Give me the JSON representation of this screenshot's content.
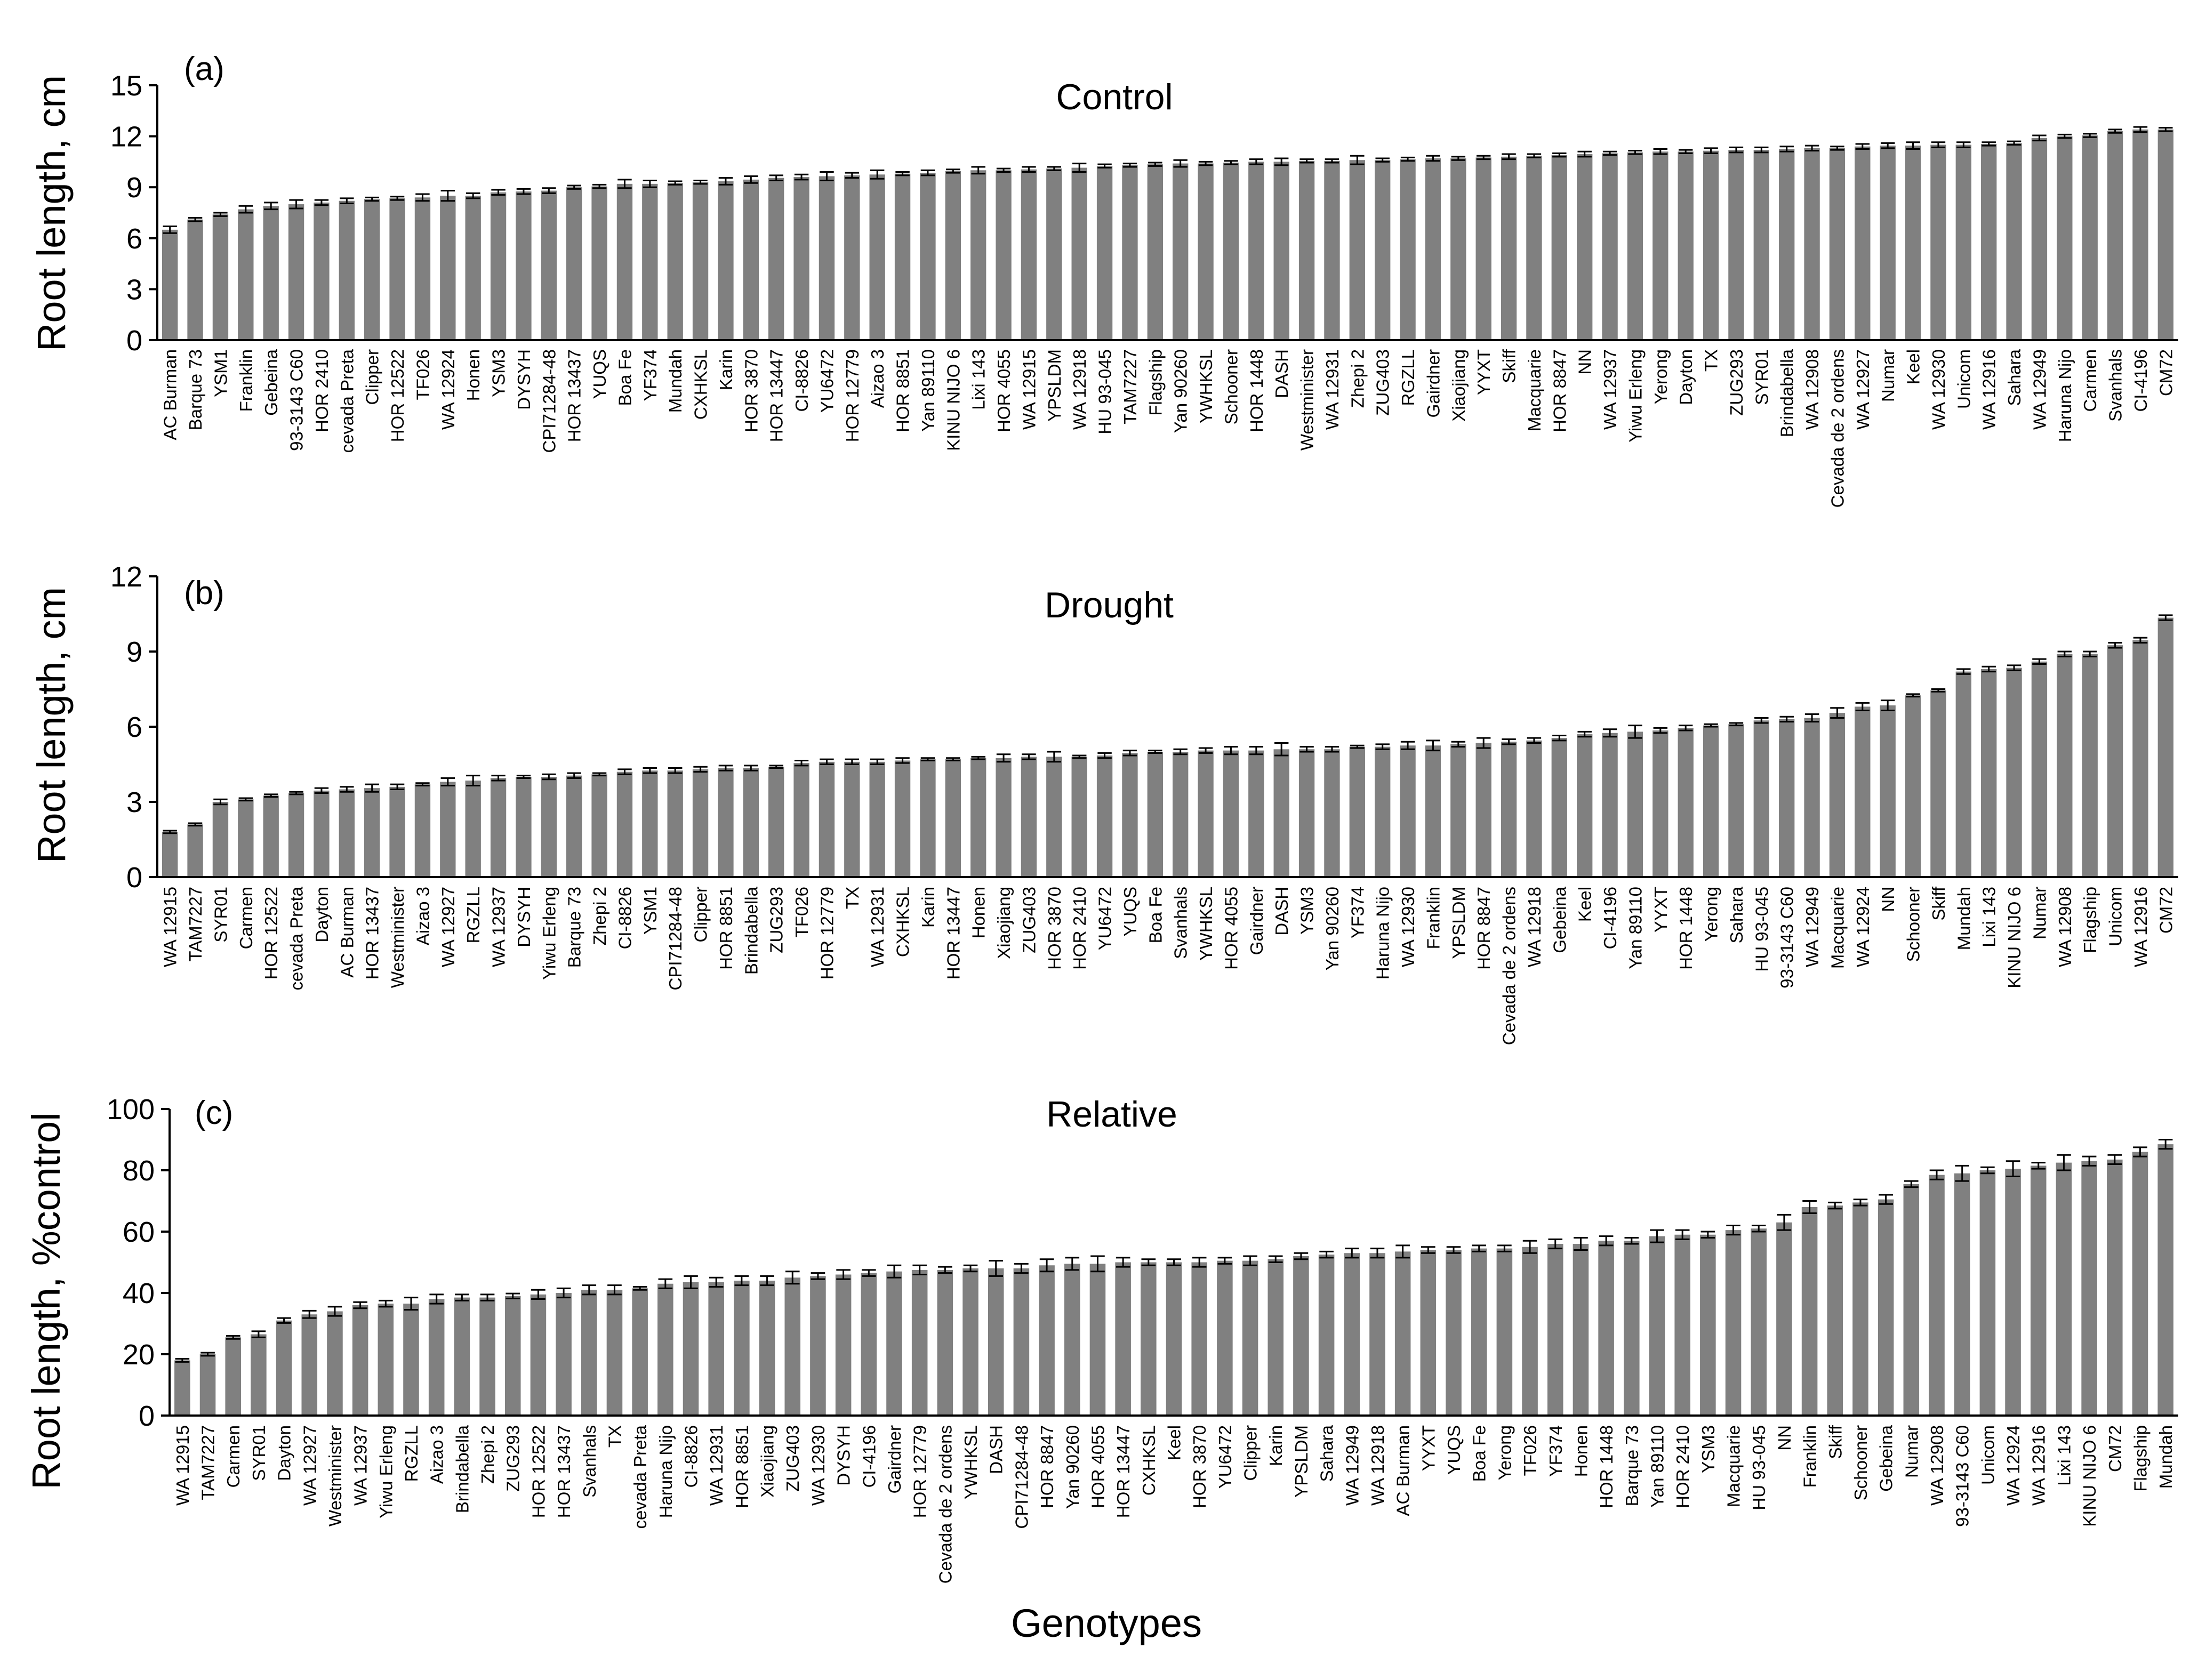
{
  "colors": {
    "bar": "#808080",
    "axis": "#000000",
    "errorbar": "#000000",
    "background": "#ffffff"
  },
  "xlabel": "Genotypes",
  "chart_data": [
    {
      "type": "bar",
      "panel": "(a)",
      "title": "Control",
      "ylabel": "Root length, cm",
      "xlabel": "",
      "ylim": [
        0,
        15
      ],
      "yticks": [
        0,
        3,
        6,
        9,
        12,
        15
      ],
      "categories": [
        "AC Burman",
        "Barque 73",
        "YSM1",
        "Franklin",
        "Gebeina",
        "93-3143 C60",
        "HOR 2410",
        "cevada Preta",
        "Clipper",
        "HOR 12522",
        "TF026",
        "WA 12924",
        "Honen",
        "YSM3",
        "DYSYH",
        "CPI71284-48",
        "HOR 13437",
        "YUQS",
        "Boa Fe",
        "YF374",
        "Mundah",
        "CXHKSL",
        "Karin",
        "HOR 3870",
        "HOR 13447",
        "CI-8826",
        "YU6472",
        "HOR 12779",
        "Aizao 3",
        "HOR 8851",
        "Yan 89110",
        "KINU NIJO 6",
        "Lixi 143",
        "HOR 4055",
        "WA 12915",
        "YPSLDM",
        "WA 12918",
        "HU 93-045",
        "TAM7227",
        "Flagship",
        "Yan 90260",
        "YWHKSL",
        "Schooner",
        "HOR 1448",
        "DASH",
        "Westminister",
        "WA 12931",
        "Zhepi 2",
        "ZUG403",
        "RGZLL",
        "Gairdner",
        "Xiaojiang",
        "YYXT",
        "Skiff",
        "Macquarie",
        "HOR 8847",
        "NN",
        "WA 12937",
        "Yiwu Erleng",
        "Yerong",
        "Dayton",
        "TX",
        "ZUG293",
        "SYR01",
        "Brindabella",
        "WA 12908",
        "Cevada de 2 ordens",
        "WA 12927",
        "Numar",
        "Keel",
        "WA 12930",
        "Unicom",
        "WA 12916",
        "Sahara",
        "WA 12949",
        "Haruna Nijo",
        "Carmen",
        "Svanhals",
        "CI-4196",
        "CM72"
      ],
      "values": [
        6.5,
        7.1,
        7.4,
        7.7,
        7.9,
        8.0,
        8.1,
        8.2,
        8.3,
        8.35,
        8.4,
        8.5,
        8.5,
        8.7,
        8.75,
        8.8,
        9.0,
        9.05,
        9.2,
        9.2,
        9.25,
        9.3,
        9.35,
        9.45,
        9.55,
        9.6,
        9.65,
        9.7,
        9.75,
        9.8,
        9.85,
        9.95,
        10.0,
        10.0,
        10.05,
        10.1,
        10.15,
        10.25,
        10.3,
        10.35,
        10.4,
        10.4,
        10.45,
        10.5,
        10.5,
        10.55,
        10.55,
        10.6,
        10.6,
        10.65,
        10.7,
        10.7,
        10.75,
        10.8,
        10.85,
        10.9,
        10.95,
        11.0,
        11.05,
        11.1,
        11.1,
        11.15,
        11.2,
        11.2,
        11.25,
        11.3,
        11.3,
        11.4,
        11.45,
        11.45,
        11.5,
        11.5,
        11.55,
        11.6,
        11.9,
        12.0,
        12.05,
        12.3,
        12.4,
        12.4
      ],
      "errors": [
        0.2,
        0.1,
        0.1,
        0.2,
        0.2,
        0.25,
        0.15,
        0.15,
        0.1,
        0.1,
        0.2,
        0.3,
        0.15,
        0.15,
        0.15,
        0.15,
        0.1,
        0.1,
        0.25,
        0.2,
        0.1,
        0.1,
        0.2,
        0.2,
        0.15,
        0.15,
        0.25,
        0.15,
        0.25,
        0.1,
        0.15,
        0.1,
        0.2,
        0.1,
        0.15,
        0.1,
        0.25,
        0.1,
        0.1,
        0.1,
        0.2,
        0.1,
        0.1,
        0.15,
        0.2,
        0.1,
        0.1,
        0.25,
        0.1,
        0.1,
        0.15,
        0.1,
        0.1,
        0.15,
        0.1,
        0.1,
        0.15,
        0.1,
        0.1,
        0.15,
        0.1,
        0.15,
        0.15,
        0.15,
        0.15,
        0.15,
        0.1,
        0.15,
        0.15,
        0.2,
        0.15,
        0.15,
        0.1,
        0.1,
        0.15,
        0.1,
        0.1,
        0.1,
        0.15,
        0.1
      ]
    },
    {
      "type": "bar",
      "panel": "(b)",
      "title": "Drought",
      "ylabel": "Root length, cm",
      "xlabel": "",
      "ylim": [
        0,
        12
      ],
      "yticks": [
        0,
        3,
        6,
        9,
        12
      ],
      "categories": [
        "WA 12915",
        "TAM7227",
        "SYR01",
        "Carmen",
        "HOR 12522",
        "cevada Preta",
        "Dayton",
        "AC Burman",
        "HOR 13437",
        "Westminister",
        "Aizao 3",
        "WA 12927",
        "RGZLL",
        "WA 12937",
        "DYSYH",
        "Yiwu Erleng",
        "Barque 73",
        "Zhepi 2",
        "CI-8826",
        "YSM1",
        "CPI71284-48",
        "Clipper",
        "HOR 8851",
        "Brindabella",
        "ZUG293",
        "TF026",
        "HOR 12779",
        "TX",
        "WA 12931",
        "CXHKSL",
        "Karin",
        "HOR 13447",
        "Honen",
        "Xiaojiang",
        "ZUG403",
        "HOR 3870",
        "HOR 2410",
        "YU6472",
        "YUQS",
        "Boa Fe",
        "Svanhals",
        "YWHKSL",
        "HOR 4055",
        "Gairdner",
        "DASH",
        "YSM3",
        "Yan 90260",
        "YF374",
        "Haruna Nijo",
        "WA 12930",
        "Franklin",
        "YPSLDM",
        "HOR 8847",
        "Cevada de 2 ordens",
        "WA 12918",
        "Gebeina",
        "Keel",
        "CI-4196",
        "Yan 89110",
        "YYXT",
        "HOR 1448",
        "Yerong",
        "Sahara",
        "HU 93-045",
        "93-3143 C60",
        "WA 12949",
        "Macquarie",
        "WA 12924",
        "NN",
        "Schooner",
        "Skiff",
        "Mundah",
        "Lixi 143",
        "KINU NIJO 6",
        "Numar",
        "WA 12908",
        "Flagship",
        "Unicom",
        "WA 12916",
        "CM72"
      ],
      "values": [
        1.8,
        2.1,
        3.0,
        3.1,
        3.25,
        3.35,
        3.45,
        3.5,
        3.55,
        3.6,
        3.7,
        3.8,
        3.85,
        3.95,
        4.0,
        4.0,
        4.05,
        4.1,
        4.2,
        4.25,
        4.25,
        4.3,
        4.35,
        4.35,
        4.4,
        4.55,
        4.6,
        4.6,
        4.6,
        4.65,
        4.7,
        4.7,
        4.75,
        4.75,
        4.8,
        4.8,
        4.8,
        4.85,
        4.95,
        5.0,
        5.0,
        5.05,
        5.05,
        5.05,
        5.1,
        5.1,
        5.1,
        5.2,
        5.2,
        5.25,
        5.25,
        5.3,
        5.35,
        5.4,
        5.45,
        5.55,
        5.7,
        5.75,
        5.8,
        5.85,
        5.95,
        6.05,
        6.1,
        6.25,
        6.3,
        6.35,
        6.55,
        6.8,
        6.85,
        7.25,
        7.45,
        8.2,
        8.3,
        8.35,
        8.6,
        8.9,
        8.9,
        9.25,
        9.45,
        10.35
      ],
      "errors": [
        0.05,
        0.05,
        0.1,
        0.05,
        0.05,
        0.05,
        0.1,
        0.1,
        0.15,
        0.1,
        0.05,
        0.15,
        0.2,
        0.1,
        0.05,
        0.1,
        0.1,
        0.05,
        0.1,
        0.1,
        0.1,
        0.1,
        0.1,
        0.1,
        0.05,
        0.1,
        0.1,
        0.1,
        0.1,
        0.1,
        0.05,
        0.05,
        0.05,
        0.15,
        0.1,
        0.2,
        0.05,
        0.1,
        0.1,
        0.05,
        0.1,
        0.1,
        0.15,
        0.15,
        0.25,
        0.1,
        0.1,
        0.05,
        0.1,
        0.15,
        0.2,
        0.1,
        0.2,
        0.1,
        0.1,
        0.1,
        0.1,
        0.15,
        0.25,
        0.1,
        0.1,
        0.05,
        0.05,
        0.1,
        0.1,
        0.15,
        0.2,
        0.15,
        0.2,
        0.05,
        0.05,
        0.1,
        0.1,
        0.1,
        0.1,
        0.1,
        0.1,
        0.1,
        0.1,
        0.1
      ]
    },
    {
      "type": "bar",
      "panel": "(c)",
      "title": "Relative",
      "ylabel": "Root length, %control",
      "xlabel": "Genotypes",
      "ylim": [
        0,
        100
      ],
      "yticks": [
        0,
        20,
        40,
        60,
        80,
        100
      ],
      "categories": [
        "WA 12915",
        "TAM7227",
        "Carmen",
        "SYR01",
        "Dayton",
        "WA 12927",
        "Westminister",
        "WA 12937",
        "Yiwu Erleng",
        "RGZLL",
        "Aizao 3",
        "Brindabella",
        "Zhepi 2",
        "ZUG293",
        "HOR 12522",
        "HOR 13437",
        "Svanhals",
        "TX",
        "cevada Preta",
        "Haruna Nijo",
        "CI-8826",
        "WA 12931",
        "HOR 8851",
        "Xiaojiang",
        "ZUG403",
        "WA 12930",
        "DYSYH",
        "CI-4196",
        "Gairdner",
        "HOR 12779",
        "Cevada de 2 ordens",
        "YWHKSL",
        "DASH",
        "CPI71284-48",
        "HOR 8847",
        "Yan 90260",
        "HOR 4055",
        "HOR 13447",
        "CXHKSL",
        "Keel",
        "HOR 3870",
        "YU6472",
        "Clipper",
        "Karin",
        "YPSLDM",
        "Sahara",
        "WA 12949",
        "WA 12918",
        "AC Burman",
        "YYXT",
        "YUQS",
        "Boa Fe",
        "Yerong",
        "TF026",
        "YF374",
        "Honen",
        "HOR 1448",
        "Barque 73",
        "Yan 89110",
        "HOR 2410",
        "YSM3",
        "Macquarie",
        "HU 93-045",
        "NN",
        "Franklin",
        "Skiff",
        "Schooner",
        "Gebeina",
        "Numar",
        "WA 12908",
        "93-3143 C60",
        "Unicom",
        "WA 12924",
        "WA 12916",
        "Lixi 143",
        "KINU NIJO 6",
        "CM72",
        "Flagship",
        "Mundah"
      ],
      "values": [
        18,
        20,
        25.5,
        26.5,
        31,
        33,
        34,
        36,
        36.5,
        36.5,
        38,
        38.5,
        38.5,
        39,
        39.5,
        40,
        41,
        41,
        41.5,
        43,
        43.5,
        43.5,
        44,
        44,
        45,
        45.5,
        46,
        46.5,
        47,
        47.5,
        47.5,
        48,
        48,
        48,
        49,
        49.5,
        49.5,
        50,
        50,
        50,
        50,
        50.5,
        50.5,
        51,
        52,
        52.5,
        53,
        53,
        53.5,
        54,
        54,
        54.5,
        54.5,
        55,
        56,
        56,
        57,
        57,
        58.5,
        59,
        59,
        60.5,
        61,
        63,
        68,
        68.5,
        69.5,
        70.5,
        75.5,
        78.5,
        79,
        80,
        80.5,
        81.5,
        82.5,
        83,
        83.5,
        86,
        88.5
      ],
      "errors": [
        0.5,
        0.5,
        0.5,
        1,
        0.8,
        1.2,
        1.5,
        1,
        1,
        2,
        1.5,
        1,
        1,
        0.8,
        1.5,
        1.5,
        1.5,
        1.5,
        0.5,
        1.5,
        2,
        1.5,
        1.5,
        1.5,
        2,
        1,
        1.5,
        1,
        2,
        1.5,
        1,
        1,
        2.5,
        1.5,
        2,
        2,
        2.5,
        1.5,
        1,
        1,
        1.5,
        1,
        1.5,
        1,
        1,
        1,
        1.5,
        1.5,
        2,
        1,
        1,
        1,
        1,
        2,
        1.5,
        2,
        1.5,
        1,
        2,
        1.5,
        1,
        1.5,
        1,
        2.5,
        2,
        1,
        1,
        1.5,
        1,
        1.5,
        2.5,
        1,
        2.5,
        1,
        2.5,
        1.5,
        1.5,
        1.5,
        1.5
      ]
    }
  ]
}
